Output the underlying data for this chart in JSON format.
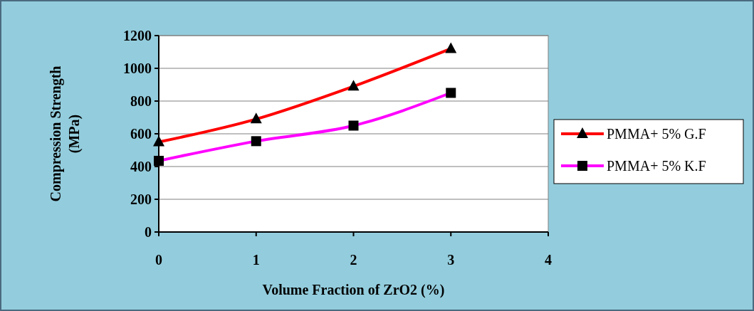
{
  "chart_data": {
    "type": "line",
    "xlabel": "Volume Fraction of ZrO2 (%)",
    "ylabel": "Compression Strength (MPa)",
    "x": [
      0,
      1,
      2,
      3
    ],
    "xlim": [
      0,
      4
    ],
    "xticks": [
      0,
      1,
      2,
      3,
      4
    ],
    "ylim": [
      0,
      1200
    ],
    "yticks": [
      0,
      200,
      400,
      600,
      800,
      1000,
      1200
    ],
    "grid": "y",
    "legend": "right",
    "series": [
      {
        "name": "PMMA+ 5% G.F",
        "color": "#ff0000",
        "marker": "triangle",
        "values": [
          550,
          690,
          890,
          1120
        ]
      },
      {
        "name": "PMMA+ 5% K.F",
        "color": "#ff00ff",
        "marker": "square",
        "values": [
          435,
          555,
          650,
          850
        ]
      }
    ]
  }
}
